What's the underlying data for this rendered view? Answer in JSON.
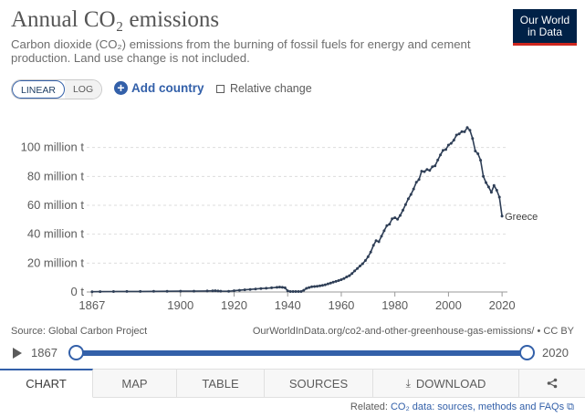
{
  "header": {
    "title": "Annual CO₂ emissions",
    "subtitle": "Carbon dioxide (CO₂) emissions from the burning of fossil fuels for energy and cement production. Land use change is not included.",
    "logo_line1": "Our World",
    "logo_line2": "in Data"
  },
  "controls": {
    "linear_label": "LINEAR",
    "log_label": "LOG",
    "add_country_label": "Add country",
    "relative_change_label": "Relative change"
  },
  "chart_data": {
    "type": "line",
    "title": "Annual CO₂ emissions",
    "xlabel": "",
    "ylabel": "",
    "xlim": [
      1865,
      2022
    ],
    "ylim": [
      0,
      120000000
    ],
    "y_ticks": [
      0,
      20000000,
      40000000,
      60000000,
      80000000,
      100000000
    ],
    "y_tick_labels": [
      "0 t",
      "20 million t",
      "40 million t",
      "60 million t",
      "80 million t",
      "100 million t"
    ],
    "x_ticks": [
      1867,
      1900,
      1920,
      1940,
      1960,
      1980,
      2000,
      2020
    ],
    "x_tick_labels": [
      "1867",
      "1900",
      "1920",
      "1940",
      "1960",
      "1980",
      "2000",
      "2020"
    ],
    "grid": true,
    "series": [
      {
        "name": "Greece",
        "color": "#2e3e56",
        "x": [
          1867,
          1870,
          1875,
          1880,
          1885,
          1890,
          1895,
          1900,
          1905,
          1910,
          1912,
          1913,
          1914,
          1915,
          1918,
          1920,
          1922,
          1924,
          1926,
          1928,
          1930,
          1932,
          1934,
          1936,
          1937,
          1938,
          1939,
          1940,
          1941,
          1942,
          1943,
          1944,
          1945,
          1946,
          1947,
          1948,
          1949,
          1950,
          1951,
          1952,
          1953,
          1954,
          1955,
          1956,
          1957,
          1958,
          1959,
          1960,
          1961,
          1962,
          1963,
          1964,
          1965,
          1966,
          1967,
          1968,
          1969,
          1970,
          1971,
          1972,
          1973,
          1974,
          1975,
          1976,
          1977,
          1978,
          1979,
          1980,
          1981,
          1982,
          1983,
          1984,
          1985,
          1986,
          1987,
          1988,
          1989,
          1990,
          1991,
          1992,
          1993,
          1994,
          1995,
          1996,
          1997,
          1998,
          1999,
          2000,
          2001,
          2002,
          2003,
          2004,
          2005,
          2006,
          2007,
          2008,
          2009,
          2010,
          2011,
          2012,
          2013,
          2014,
          2015,
          2016,
          2017,
          2018,
          2019,
          2020
        ],
        "values": [
          200000,
          250000,
          300000,
          350000,
          400000,
          450000,
          500000,
          550000,
          600000,
          700000,
          800000,
          900000,
          700000,
          600000,
          500000,
          900000,
          1200000,
          1500000,
          1800000,
          2100000,
          2400000,
          2600000,
          2900000,
          3200000,
          3400000,
          3200000,
          2900000,
          800000,
          300000,
          300000,
          300000,
          300000,
          300000,
          1200000,
          2500000,
          3100000,
          3600000,
          3800000,
          4000000,
          4300000,
          4600000,
          5000000,
          5600000,
          6200000,
          6800000,
          7300000,
          7900000,
          8500000,
          9300000,
          10400000,
          11300000,
          12800000,
          14600000,
          16300000,
          18000000,
          19600000,
          21800000,
          24400000,
          27600000,
          32300000,
          35500000,
          34800000,
          38600000,
          42400000,
          45900000,
          46900000,
          50700000,
          51400000,
          50400000,
          53000000,
          56600000,
          60500000,
          64500000,
          67500000,
          71300000,
          76000000,
          77800000,
          83600000,
          83300000,
          84800000,
          84100000,
          86700000,
          87300000,
          91300000,
          94900000,
          98100000,
          98600000,
          101700000,
          102900000,
          105100000,
          108600000,
          109400000,
          111000000,
          110900000,
          113800000,
          111900000,
          106300000,
          97600000,
          95700000,
          91200000,
          80100000,
          75700000,
          72700000,
          69000000,
          73800000,
          70400000,
          65700000,
          52500000
        ]
      }
    ],
    "series_label": "Greece"
  },
  "footer": {
    "source": "Source: Global Carbon Project",
    "license": "OurWorldInData.org/co2-and-other-greenhouse-gas-emissions/ • CC BY"
  },
  "timeline": {
    "start_year": "1867",
    "end_year": "2020"
  },
  "tabs": {
    "chart": "CHART",
    "map": "MAP",
    "table": "TABLE",
    "sources": "SOURCES",
    "download": "DOWNLOAD"
  },
  "related": {
    "prefix": "Related:",
    "link": "CO₂ data: sources, methods and FAQs ⧉"
  },
  "colors": {
    "accent": "#3360a9",
    "line": "#2e3e56",
    "logo_bg": "#002147",
    "logo_bar": "#ce261e"
  }
}
